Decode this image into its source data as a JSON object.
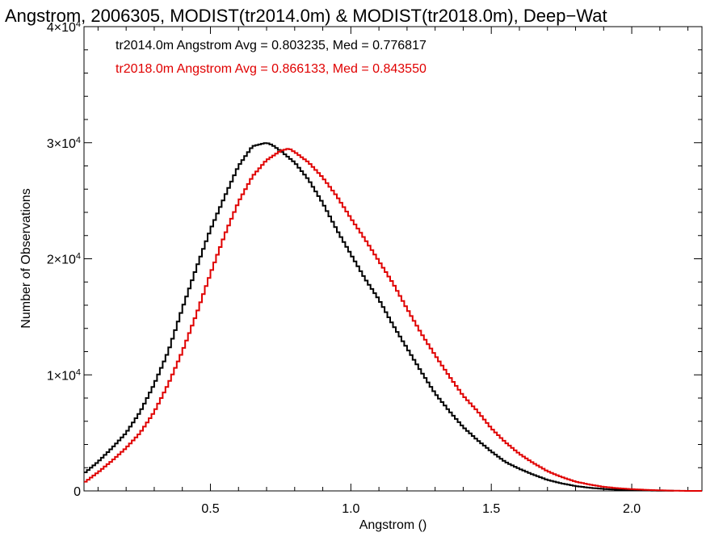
{
  "chart_data": {
    "type": "line",
    "title": "Angstrom, 2006305, MODIST(tr2014.0m) & MODIST(tr2018.0m), Deep−Wat",
    "xlabel": "Angstrom ()",
    "ylabel": "Number of Observations",
    "xlim": [
      0.05,
      2.25
    ],
    "ylim": [
      0,
      40000
    ],
    "x_ticks": [
      {
        "value": 0.5,
        "label": "0.5"
      },
      {
        "value": 1.0,
        "label": "1.0"
      },
      {
        "value": 1.5,
        "label": "1.5"
      },
      {
        "value": 2.0,
        "label": "2.0"
      }
    ],
    "y_ticks": [
      {
        "value": 0,
        "label": "0",
        "mant": "0",
        "exp": ""
      },
      {
        "value": 10000,
        "label": "1×10^4",
        "mant": "1×10",
        "exp": "4"
      },
      {
        "value": 20000,
        "label": "2×10^4",
        "mant": "2×10",
        "exp": "4"
      },
      {
        "value": 30000,
        "label": "3×10^4",
        "mant": "3×10",
        "exp": "4"
      },
      {
        "value": 40000,
        "label": "4×10^4",
        "mant": "4×10",
        "exp": "4"
      }
    ],
    "grid": false,
    "legend_position": "top-left",
    "annotations": [
      "tr2014.0m Angstrom Avg = 0.803235, Med = 0.776817",
      "tr2018.0m Angstrom Avg = 0.866133, Med = 0.843550"
    ],
    "series": [
      {
        "color": "#000000",
        "x": [
          0.05,
          0.1,
          0.15,
          0.2,
          0.25,
          0.3,
          0.35,
          0.4,
          0.45,
          0.5,
          0.55,
          0.6,
          0.65,
          0.7,
          0.72,
          0.75,
          0.8,
          0.85,
          0.9,
          0.95,
          1.0,
          1.05,
          1.1,
          1.15,
          1.2,
          1.25,
          1.3,
          1.35,
          1.4,
          1.45,
          1.5,
          1.55,
          1.6,
          1.65,
          1.7,
          1.75,
          1.8,
          1.85,
          1.9,
          1.95,
          2.0,
          2.05,
          2.1,
          2.15
        ],
        "y": [
          1500,
          2500,
          3700,
          5000,
          6800,
          9200,
          12000,
          15700,
          19200,
          22500,
          25300,
          28000,
          29700,
          30000,
          29800,
          29300,
          28300,
          26800,
          24800,
          22500,
          20400,
          18300,
          16500,
          14300,
          12300,
          10300,
          8400,
          6900,
          5500,
          4400,
          3400,
          2500,
          1900,
          1400,
          950,
          650,
          420,
          270,
          170,
          100,
          70,
          40,
          20,
          10
        ]
      },
      {
        "color": "#e00000",
        "x": [
          0.05,
          0.1,
          0.15,
          0.2,
          0.25,
          0.3,
          0.35,
          0.4,
          0.45,
          0.5,
          0.55,
          0.6,
          0.65,
          0.7,
          0.75,
          0.78,
          0.8,
          0.85,
          0.9,
          0.95,
          1.0,
          1.05,
          1.1,
          1.15,
          1.2,
          1.25,
          1.3,
          1.35,
          1.4,
          1.45,
          1.5,
          1.55,
          1.6,
          1.65,
          1.7,
          1.75,
          1.8,
          1.85,
          1.9,
          1.95,
          2.0,
          2.05,
          2.1,
          2.15,
          2.2
        ],
        "y": [
          700,
          1600,
          2600,
          3700,
          5000,
          6800,
          9200,
          12000,
          15200,
          18700,
          22000,
          24900,
          27100,
          28500,
          29300,
          29500,
          29200,
          28300,
          27000,
          25400,
          23500,
          21700,
          19800,
          17900,
          15700,
          13600,
          11700,
          9900,
          8200,
          6900,
          5400,
          4200,
          3200,
          2400,
          1700,
          1200,
          800,
          550,
          350,
          230,
          150,
          90,
          50,
          20,
          0
        ]
      }
    ]
  }
}
